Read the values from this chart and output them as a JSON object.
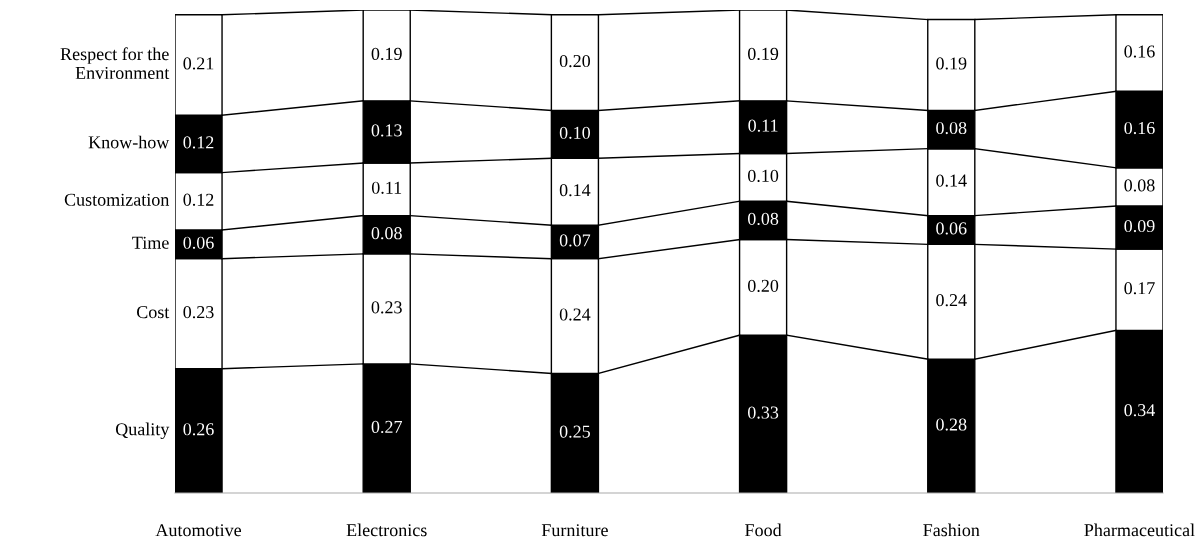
{
  "chart_data": {
    "type": "bar",
    "stacked": true,
    "legend": false,
    "grid": false,
    "tick_labels": "x",
    "categories": [
      "Automotive",
      "Electronics",
      "Furniture",
      "Food",
      "Fashion",
      "Pharmaceutical"
    ],
    "series": [
      {
        "name": "Quality",
        "color": "#000000",
        "values": [
          0.26,
          0.27,
          0.25,
          0.33,
          0.28,
          0.34
        ],
        "value_labels": [
          "0.26",
          "0.27",
          "0.25",
          "0.33",
          "0.28",
          "0.34"
        ]
      },
      {
        "name": "Cost",
        "color": "#ffffff",
        "values": [
          0.23,
          0.23,
          0.24,
          0.2,
          0.24,
          0.17
        ],
        "value_labels": [
          "0.23",
          "0.23",
          "0.24",
          "0.20",
          "0.24",
          "0.17"
        ]
      },
      {
        "name": "Time",
        "color": "#000000",
        "values": [
          0.06,
          0.08,
          0.07,
          0.08,
          0.06,
          0.09
        ],
        "value_labels": [
          "0.06",
          "0.08",
          "0.07",
          "0.08",
          "0.06",
          "0.09"
        ]
      },
      {
        "name": "Customization",
        "color": "#ffffff",
        "values": [
          0.12,
          0.11,
          0.14,
          0.1,
          0.14,
          0.08
        ],
        "value_labels": [
          "0.12",
          "0.11",
          "0.14",
          "0.10",
          "0.14",
          "0.08"
        ]
      },
      {
        "name": "Know-how",
        "color": "#000000",
        "values": [
          0.12,
          0.13,
          0.1,
          0.11,
          0.08,
          0.16
        ],
        "value_labels": [
          "0.12",
          "0.13",
          "0.10",
          "0.11",
          "0.08",
          "0.16"
        ]
      },
      {
        "name": "Respect for the\nEnvironment",
        "color": "#ffffff",
        "values": [
          0.21,
          0.19,
          0.2,
          0.19,
          0.19,
          0.16
        ],
        "value_labels": [
          "0.21",
          "0.19",
          "0.20",
          "0.19",
          "0.19",
          "0.16"
        ]
      }
    ]
  }
}
